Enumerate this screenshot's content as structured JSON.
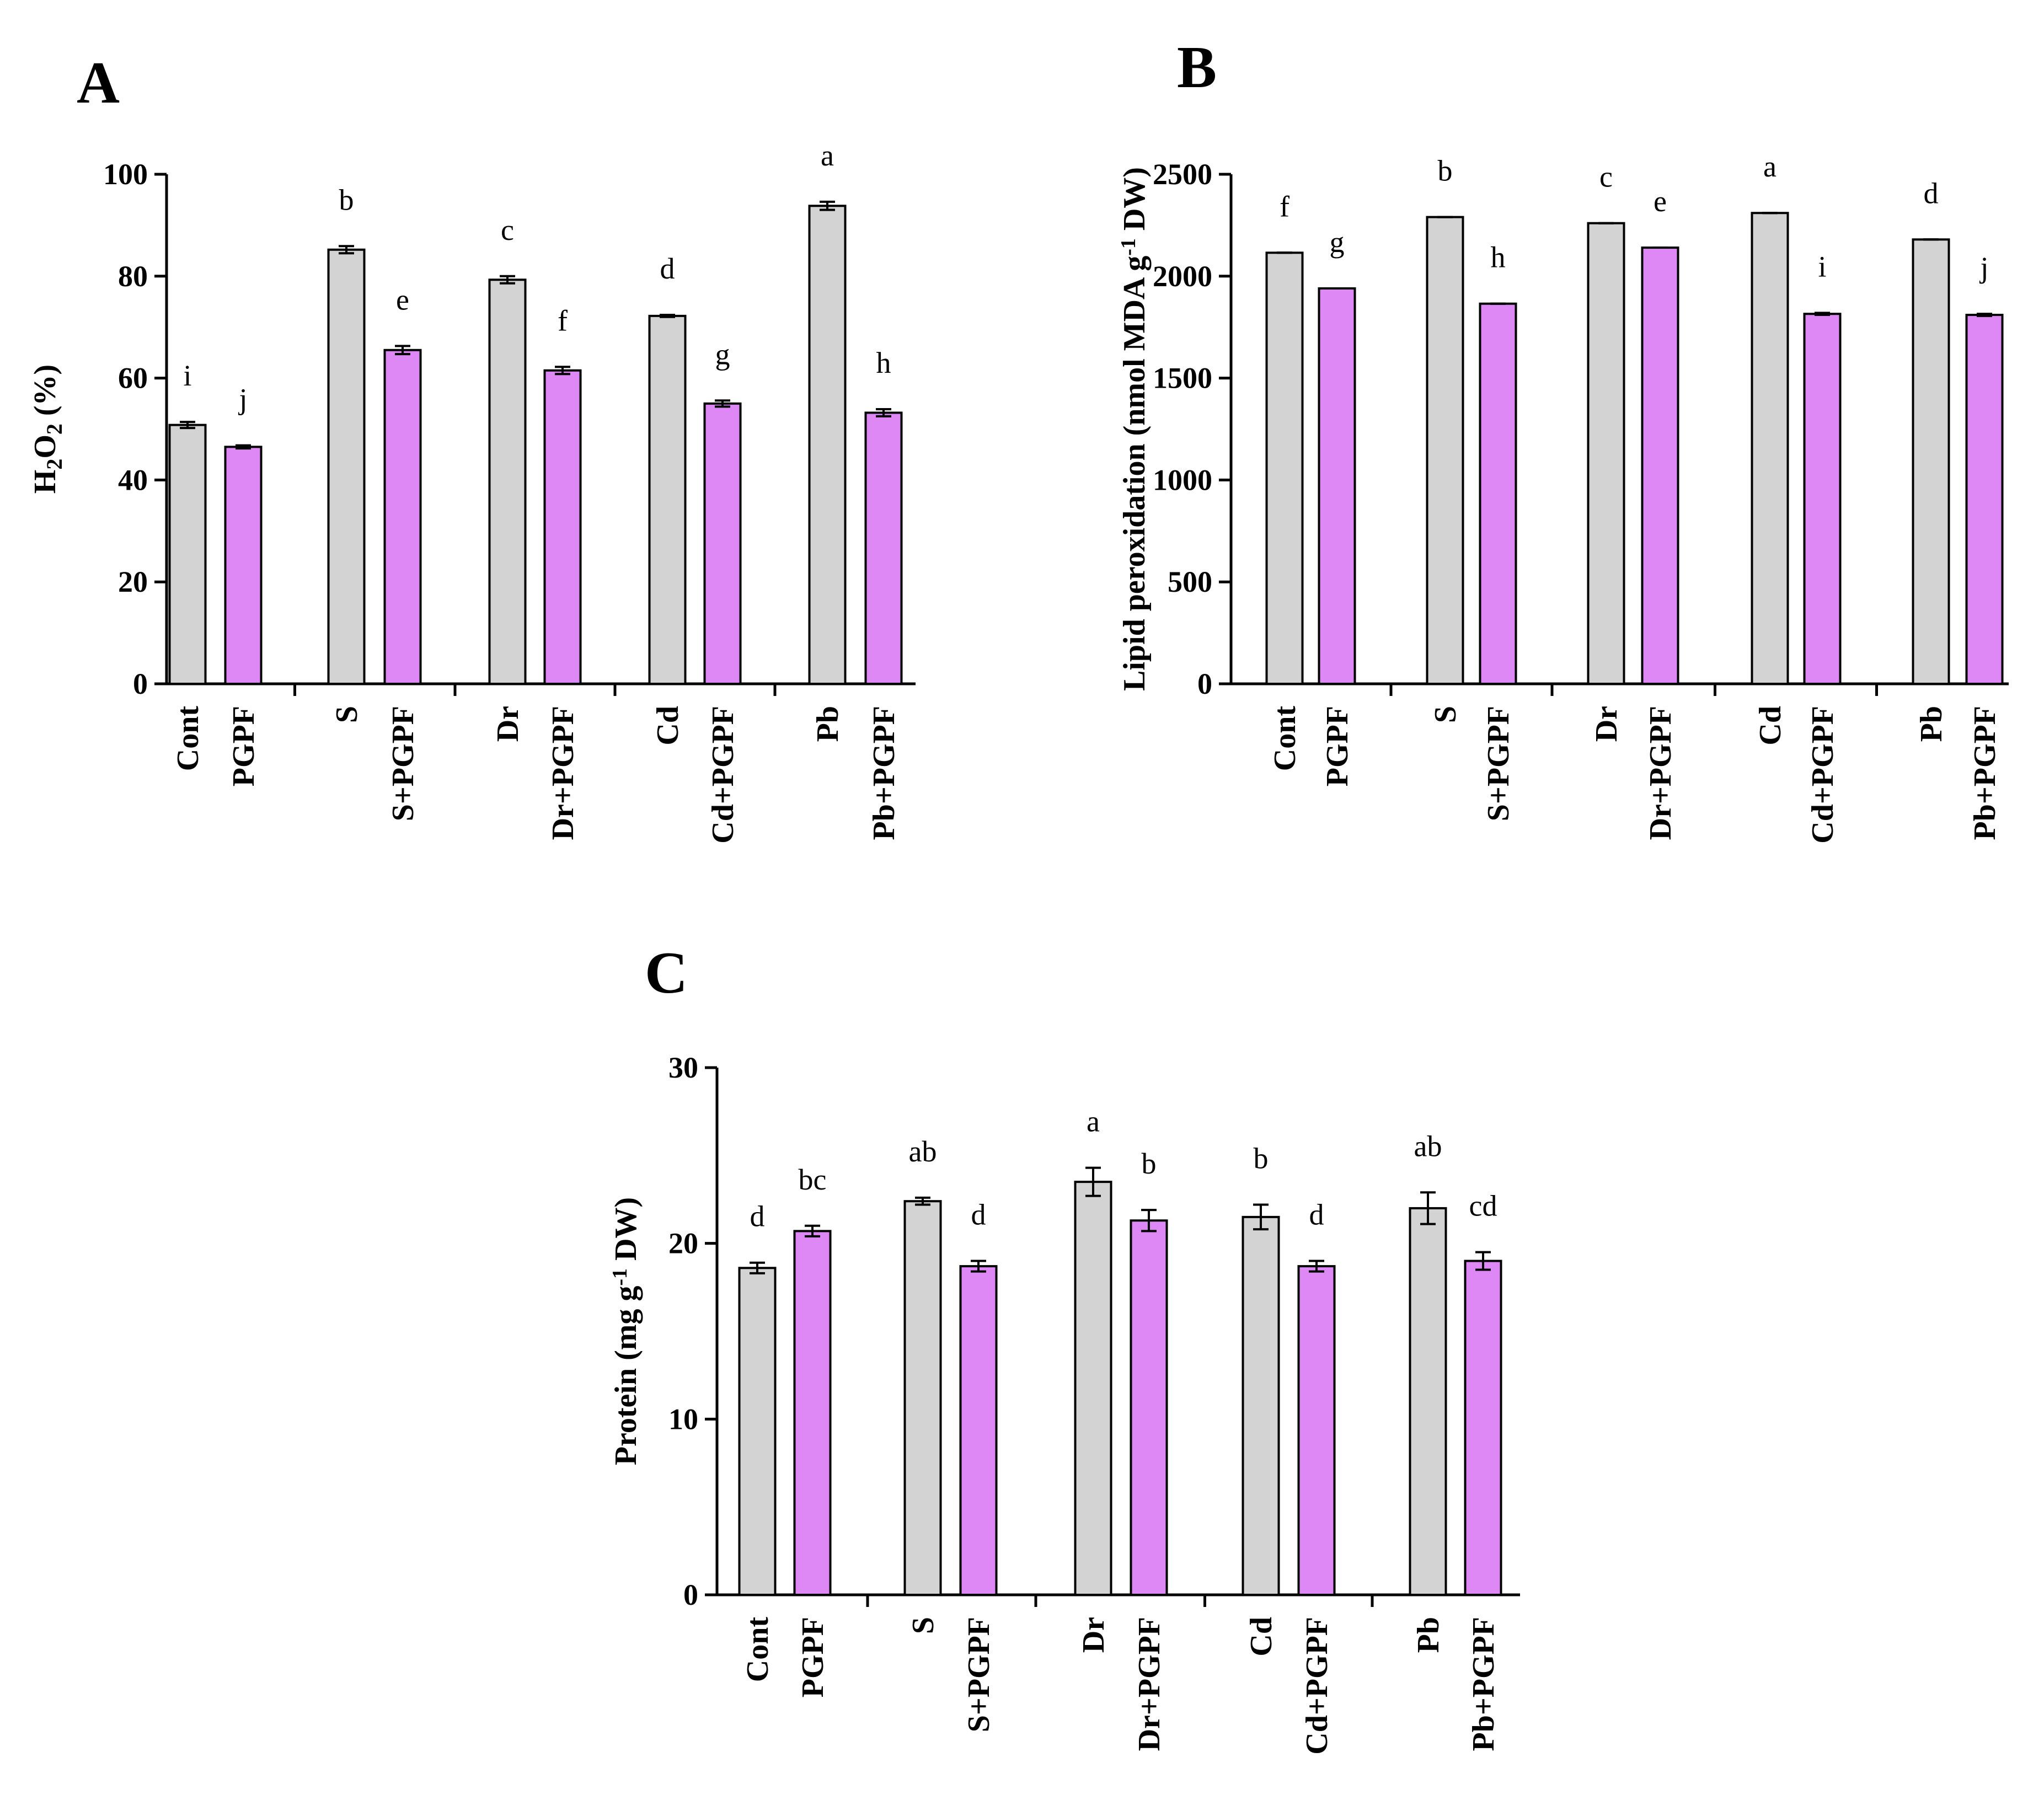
{
  "chart_data": [
    {
      "panel": "A",
      "type": "bar",
      "title": "",
      "xlabel": "",
      "ylabel": "H2O2 (%)",
      "ylabel_parts": [
        {
          "text": "H",
          "style": "normal"
        },
        {
          "text": "2",
          "style": "sub"
        },
        {
          "text": "O",
          "style": "normal"
        },
        {
          "text": "2",
          "style": "sub"
        },
        {
          "text": " (%)",
          "style": "normal"
        }
      ],
      "ylim": [
        0,
        100
      ],
      "yticks": [
        "0",
        "20",
        "40",
        "60",
        "80",
        "100"
      ],
      "categories": [
        "Cont",
        "PGPF",
        "S",
        "S+PGPF",
        "Dr",
        "Dr+PGPF",
        "Cd",
        "Cd+PGPF",
        "Pb",
        "Pb+PGPF"
      ],
      "values": [
        50.8,
        46.5,
        85.2,
        65.5,
        79.3,
        61.5,
        72.2,
        55.0,
        93.8,
        53.2
      ],
      "errors": [
        0.6,
        0.3,
        0.7,
        0.8,
        0.7,
        0.7,
        0.2,
        0.6,
        0.8,
        0.7
      ],
      "letters": [
        "i",
        "j",
        "b",
        "e",
        "c",
        "f",
        "d",
        "g",
        "a",
        "h"
      ],
      "colors": [
        "#d3d3d3",
        "#dd88f5",
        "#d3d3d3",
        "#dd88f5",
        "#d3d3d3",
        "#dd88f5",
        "#d3d3d3",
        "#dd88f5",
        "#d3d3d3",
        "#dd88f5"
      ],
      "grid": false
    },
    {
      "panel": "B",
      "type": "bar",
      "title": "",
      "xlabel": "",
      "ylabel": "Lipid peroxidation (nmol MDA g-1 DW)",
      "ylabel_parts": [
        {
          "text": "Lipid peroxidation (nmol MDA g",
          "style": "normal"
        },
        {
          "text": "-1",
          "style": "sup"
        },
        {
          "text": " DW)",
          "style": "normal"
        }
      ],
      "ylim": [
        0,
        2500
      ],
      "yticks": [
        "0",
        "500",
        "1000",
        "1500",
        "2000",
        "2500"
      ],
      "categories": [
        "Cont",
        "PGPF",
        "S",
        "S+PGPF",
        "Dr",
        "Dr+PGPF",
        "Cd",
        "Cd+PGPF",
        "Pb",
        "Pb+PGPF"
      ],
      "values": [
        2115,
        1940,
        2290,
        1865,
        2260,
        2140,
        2310,
        1815,
        2180,
        1810
      ],
      "errors": [
        0,
        0,
        0,
        0,
        0,
        0,
        0,
        5,
        0,
        5
      ],
      "letters": [
        "f",
        "g",
        "b",
        "h",
        "c",
        "e",
        "a",
        "i",
        "d",
        "j"
      ],
      "colors": [
        "#d3d3d3",
        "#dd88f5",
        "#d3d3d3",
        "#dd88f5",
        "#d3d3d3",
        "#dd88f5",
        "#d3d3d3",
        "#dd88f5",
        "#d3d3d3",
        "#dd88f5"
      ],
      "grid": false
    },
    {
      "panel": "C",
      "type": "bar",
      "title": "",
      "xlabel": "",
      "ylabel": "Protein (mg g-1 DW)",
      "ylabel_parts": [
        {
          "text": "Protein (mg g",
          "style": "normal"
        },
        {
          "text": "-1",
          "style": "sup"
        },
        {
          "text": " DW)",
          "style": "normal"
        }
      ],
      "ylim": [
        0,
        30
      ],
      "yticks": [
        "0",
        "10",
        "20",
        "30"
      ],
      "categories": [
        "Cont",
        "PGPF",
        "S",
        "S+PGPF",
        "Dr",
        "Dr+PGPF",
        "Cd",
        "Cd+PGPF",
        "Pb",
        "Pb+PGPF"
      ],
      "values": [
        18.6,
        20.7,
        22.4,
        18.7,
        23.5,
        21.3,
        21.5,
        18.7,
        22.0,
        19.0
      ],
      "errors": [
        0.3,
        0.3,
        0.2,
        0.3,
        0.8,
        0.6,
        0.7,
        0.3,
        0.9,
        0.5
      ],
      "letters": [
        "d",
        "bc",
        "ab",
        "d",
        "a",
        "b",
        "b",
        "d",
        "ab",
        "cd"
      ],
      "colors": [
        "#d3d3d3",
        "#dd88f5",
        "#d3d3d3",
        "#dd88f5",
        "#d3d3d3",
        "#dd88f5",
        "#d3d3d3",
        "#dd88f5",
        "#d3d3d3",
        "#dd88f5"
      ],
      "grid": false
    }
  ]
}
